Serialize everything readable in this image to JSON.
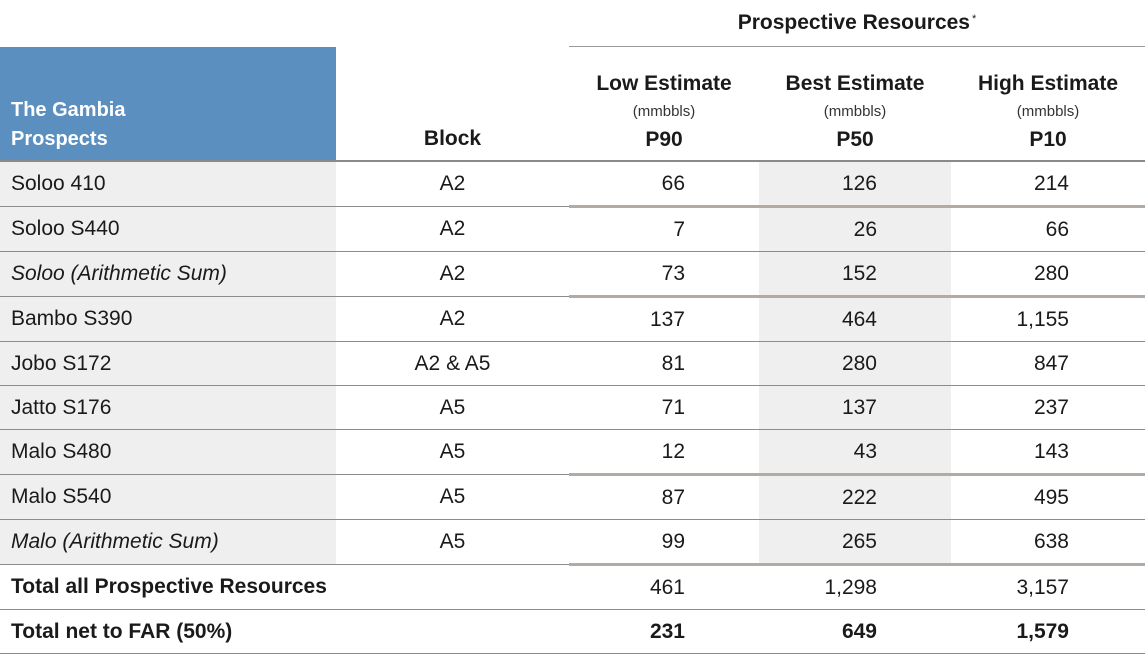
{
  "header": {
    "group_title": "Prospective Resources",
    "group_footnote_mark": "*",
    "prospects_label_line1": "The Gambia",
    "prospects_label_line2": "Prospects",
    "block_label": "Block",
    "columns": [
      {
        "title": "Low Estimate",
        "unit": "(mmbbls)",
        "p": "P90"
      },
      {
        "title": "Best Estimate",
        "unit": "(mmbbls)",
        "p": "P50"
      },
      {
        "title": "High Estimate",
        "unit": "(mmbbls)",
        "p": "P10"
      }
    ]
  },
  "rows": [
    {
      "name": "Soloo 410",
      "block": "A2",
      "low": "66",
      "best": "126",
      "high": "214"
    },
    {
      "name": "Soloo S440",
      "block": "A2",
      "low": "7",
      "best": "26",
      "high": "66"
    },
    {
      "name": "Soloo (Arithmetic Sum)",
      "block": "A2",
      "low": "73",
      "best": "152",
      "high": "280"
    },
    {
      "name": "Bambo S390",
      "block": "A2",
      "low": "137",
      "best": "464",
      "high": "1,155"
    },
    {
      "name": "Jobo S172",
      "block": "A2 & A5",
      "low": "81",
      "best": "280",
      "high": "847"
    },
    {
      "name": "Jatto S176",
      "block": "A5",
      "low": "71",
      "best": "137",
      "high": "237"
    },
    {
      "name": "Malo S480",
      "block": "A5",
      "low": "12",
      "best": "43",
      "high": "143"
    },
    {
      "name": "Malo S540",
      "block": "A5",
      "low": "87",
      "best": "222",
      "high": "495"
    },
    {
      "name": "Malo (Arithmetic Sum)",
      "block": "A5",
      "low": "99",
      "best": "265",
      "high": "638"
    },
    {
      "name": "Total all Prospective Resources",
      "block": "",
      "low": "461",
      "best": "1,298",
      "high": "3,157"
    },
    {
      "name": "Total net to FAR (50%)",
      "block": "",
      "low": "231",
      "best": "649",
      "high": "1,579"
    }
  ],
  "colors": {
    "header_fill": "#5b8fc0",
    "row_label_fill": "#efefef",
    "best_column_fill": "#efefef",
    "sum_rule": "#b2aaa4"
  }
}
